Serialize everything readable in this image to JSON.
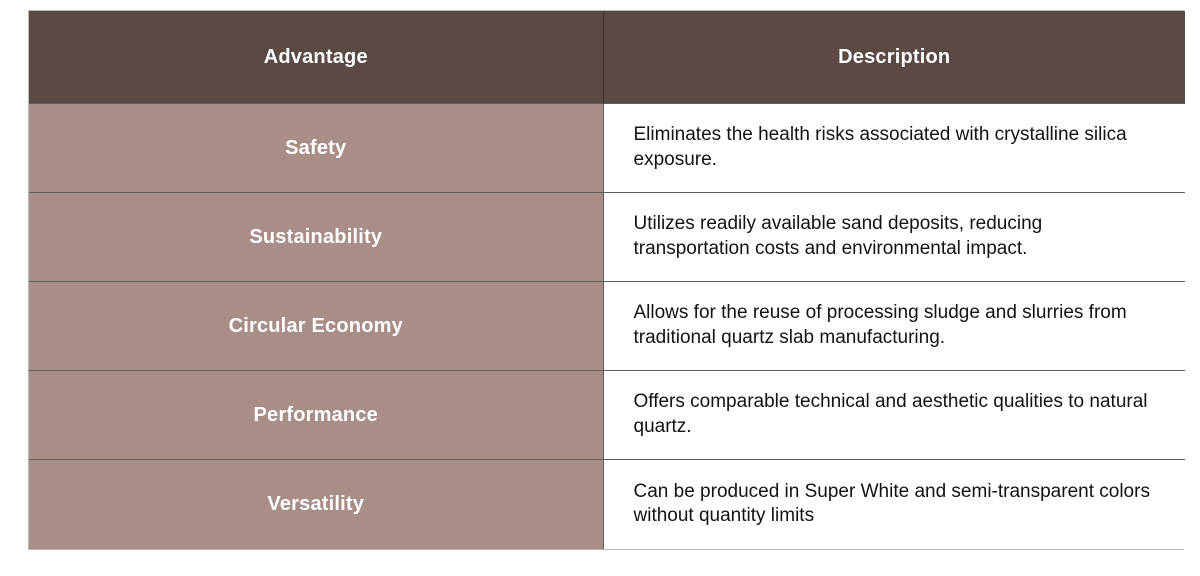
{
  "table": {
    "columns": [
      {
        "label": "Advantage"
      },
      {
        "label": "Description"
      }
    ],
    "rows": [
      {
        "advantage": "Safety",
        "description": "Eliminates the health risks associated with crystalline silica exposure."
      },
      {
        "advantage": "Sustainability",
        "description": "Utilizes readily available sand deposits, reducing transportation costs and environmental impact."
      },
      {
        "advantage": "Circular Economy",
        "description": "Allows for the reuse of processing sludge and slurries from traditional quartz slab manufacturing."
      },
      {
        "advantage": "Performance",
        "description": "Offers comparable technical and aesthetic qualities to natural quartz."
      },
      {
        "advantage": "Versatility",
        "description": "Can be produced in Super White and semi-transparent colors without quantity limits"
      }
    ],
    "colors": {
      "header_bg": "#5a4a43",
      "header_text": "#ffffff",
      "advantage_bg": "#a98e87",
      "advantage_text": "#ffffff",
      "description_bg": "#ffffff",
      "description_text": "#131313",
      "grid_line": "#5f5f5f",
      "outer_border": "#b9b9b9"
    }
  }
}
